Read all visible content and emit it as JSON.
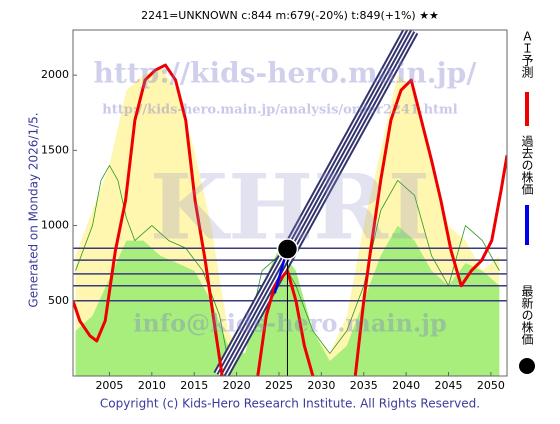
{
  "chart_data": {
    "type": "line",
    "title": "2241=UNKNOWN    c:844  m:679(-20%)  t:849(+1%) ★★",
    "generated": "Generated on Monday 2026/1/5.",
    "footer": "Copyright (c) Kids-Hero Research Institute. All Rights Reserved.",
    "watermarks": [
      "http://kids-hero.main.jp/",
      "http://kids-hero.main.jp/analysis/order2241.html",
      "KHRI",
      "info@kids-hero.main.jp"
    ],
    "xlim": [
      2000.7,
      2051.9
    ],
    "ylim": [
      0,
      2300
    ],
    "xticks": [
      2005,
      2010,
      2015,
      2020,
      2025,
      2030,
      2035,
      2040,
      2045,
      2050
    ],
    "yticks": [
      500,
      1000,
      1500,
      2000
    ],
    "areas": [
      {
        "color": "#fff6b0",
        "x": [
          2001,
          2003,
          2005,
          2007,
          2009,
          2011,
          2013,
          2015,
          2017,
          2019,
          2021,
          2023,
          2025,
          2027,
          2029,
          2031,
          2033,
          2035,
          2037,
          2039,
          2041,
          2043,
          2045,
          2047,
          2049,
          2051
        ],
        "values": [
          800,
          1100,
          1400,
          1900,
          2000,
          2050,
          1900,
          1500,
          1000,
          300,
          100,
          500,
          800,
          600,
          300,
          150,
          400,
          1000,
          1500,
          2000,
          1900,
          1400,
          1000,
          900,
          700,
          800
        ]
      },
      {
        "color": "#a8ee7c",
        "x": [
          2001,
          2003,
          2005,
          2007,
          2009,
          2011,
          2013,
          2015,
          2017,
          2019,
          2021,
          2023,
          2025,
          2027,
          2029,
          2031,
          2033,
          2035,
          2037,
          2039,
          2041,
          2043,
          2045,
          2047,
          2049,
          2051
        ],
        "values": [
          300,
          400,
          650,
          900,
          900,
          800,
          750,
          700,
          500,
          200,
          150,
          600,
          850,
          700,
          300,
          100,
          200,
          500,
          800,
          1000,
          900,
          700,
          600,
          750,
          700,
          600
        ]
      }
    ],
    "green_line": {
      "color": "#2a9a20",
      "x": [
        2001,
        2003,
        2004,
        2005,
        2006,
        2007,
        2008,
        2010,
        2012,
        2014,
        2016,
        2018,
        2019,
        2021,
        2023,
        2025,
        2027,
        2029,
        2031,
        2033,
        2035,
        2037,
        2039,
        2041,
        2043,
        2045,
        2047,
        2049,
        2051
      ],
      "values": [
        700,
        1000,
        1300,
        1400,
        1300,
        1050,
        900,
        1000,
        900,
        850,
        700,
        400,
        100,
        200,
        700,
        800,
        600,
        300,
        150,
        300,
        600,
        1100,
        1300,
        1200,
        800,
        600,
        1000,
        900,
        700
      ]
    },
    "hlines": {
      "color": "#3a3a7a",
      "values": [
        849,
        770,
        679,
        600,
        500
      ]
    },
    "trend": {
      "color": "#33336e",
      "x": [
        2018.1,
        2040.6
      ],
      "values": [
        0,
        2300
      ]
    },
    "series": [
      {
        "name": "ＡＩ予測",
        "color": "#ee0000",
        "x": [
          2000.7,
          2001.5,
          2002.7,
          2003.5,
          2004.5,
          2005.7,
          2006.9,
          2008.0,
          2009.2,
          2010.4,
          2011.6,
          2012.8,
          2014.0,
          2015.1,
          2016.3,
          2017.5,
          2018.3,
          2020,
          2022.5,
          2023.5,
          2024.5,
          2026,
          2027,
          2028,
          2029,
          2031,
          2034,
          2035,
          2035.8,
          2037.0,
          2038.2,
          2039.4,
          2040.6,
          2041.8,
          2043.0,
          2044.1,
          2045.3,
          2046.5,
          2047.7,
          2048.9,
          2050.1,
          2051.2,
          2051.9
        ],
        "values": [
          500,
          367,
          267,
          233,
          367,
          833,
          1167,
          1700,
          1967,
          2033,
          2067,
          1967,
          1700,
          1167,
          767,
          300,
          0,
          null,
          0,
          400,
          600,
          700,
          500,
          200,
          0,
          null,
          0,
          500,
          833,
          1300,
          1700,
          1900,
          1967,
          1700,
          1433,
          1167,
          833,
          600,
          700,
          767,
          900,
          1233,
          1467
        ]
      },
      {
        "name": "過去の株価",
        "color": "#0000ee",
        "x": [
          2024.5,
          2025,
          2025.5,
          2026
        ],
        "values": [
          550,
          650,
          750,
          844
        ]
      }
    ],
    "latest": {
      "name": "最新の株価",
      "color": "#000000",
      "x": 2026,
      "value": 844
    }
  }
}
